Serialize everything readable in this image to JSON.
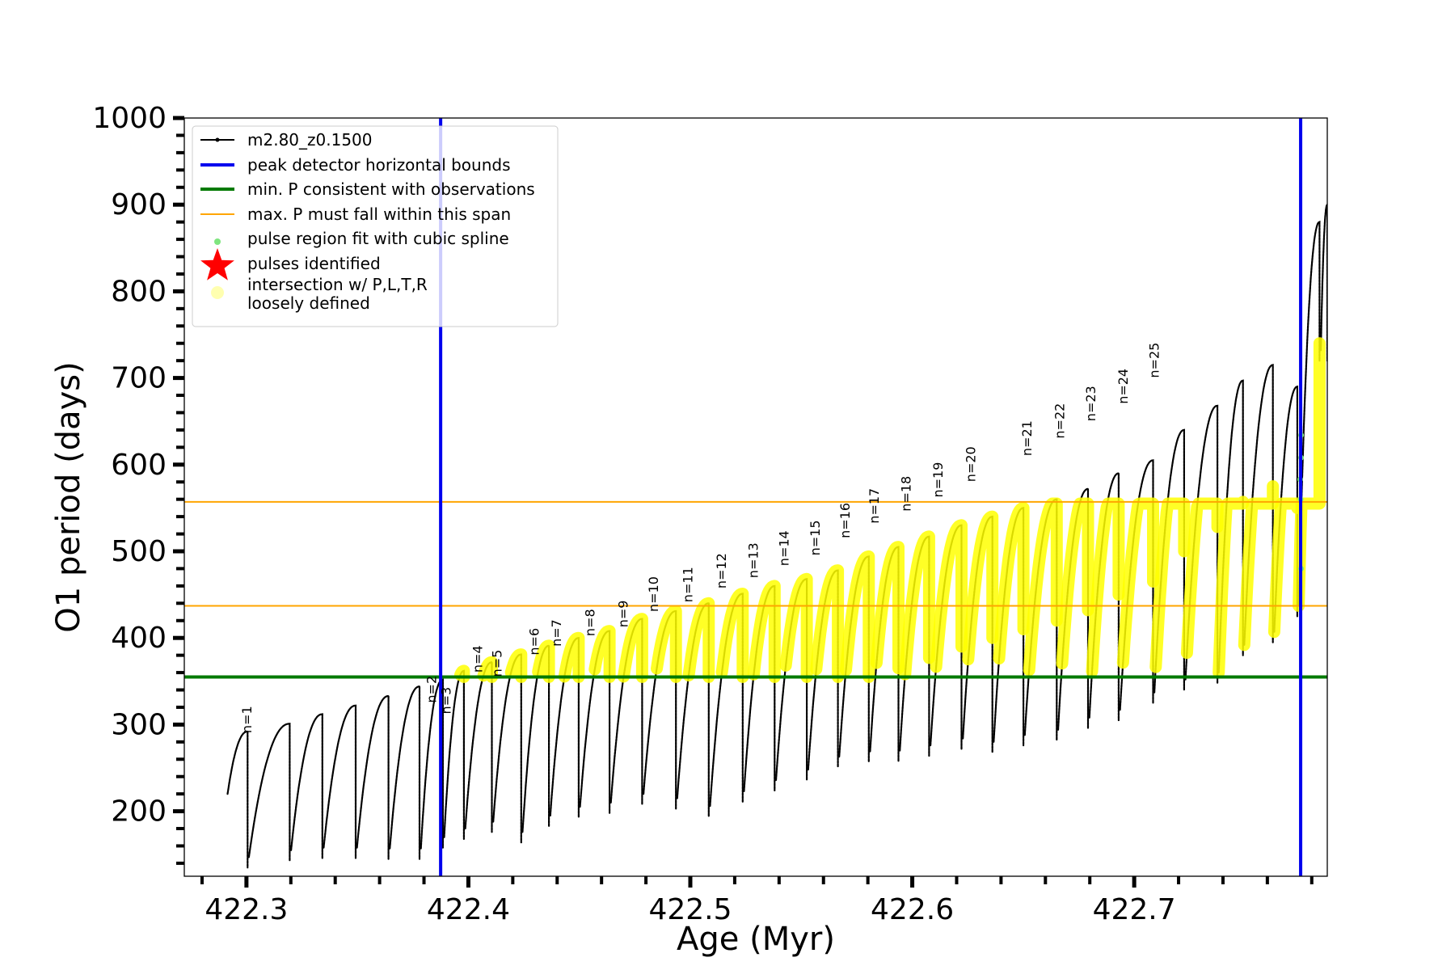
{
  "chart_data": {
    "type": "line",
    "xlabel": "Age (Myr)",
    "ylabel": "O1 period (days)",
    "xlim": [
      422.272,
      422.787
    ],
    "ylim": [
      125,
      1000
    ],
    "x_ticks": [
      "422.3",
      "422.4",
      "422.5",
      "422.6",
      "422.7"
    ],
    "y_ticks": [
      "200",
      "300",
      "400",
      "500",
      "600",
      "700",
      "800",
      "900",
      "1000"
    ],
    "grid": false,
    "legend_position": "top-left",
    "legend": [
      {
        "label": "m2.80_z0.1500",
        "marker": "line-dot",
        "color": "#000000"
      },
      {
        "label": "peak detector horizontal bounds",
        "marker": "line",
        "color": "#0000ee"
      },
      {
        "label": "min. P consistent with observations",
        "marker": "line",
        "color": "#007a00"
      },
      {
        "label": "max. P must fall within this span",
        "marker": "line",
        "color": "#ffa500"
      },
      {
        "label": "pulse region fit with cubic spline",
        "marker": "dot",
        "color": "#7fe57f"
      },
      {
        "label": "pulses identified",
        "marker": "star",
        "color": "#ff0000"
      },
      {
        "label": "intersection w/ P,L,T,R",
        "label2": "loosely defined",
        "marker": "circle",
        "color": "#ffffb0"
      }
    ],
    "series": [
      {
        "name": "m2.80_z0.1500",
        "color": "#000000",
        "start": [
          422.2915,
          220
        ],
        "cycles": [
          [
            422.3005,
            292,
            135
          ],
          [
            422.3195,
            301,
            143
          ],
          [
            422.3342,
            312,
            146
          ],
          [
            422.3492,
            322,
            146
          ],
          [
            422.364,
            333,
            145
          ],
          [
            422.378,
            344,
            145
          ],
          [
            422.3885,
            352,
            158
          ],
          [
            422.398,
            362,
            168
          ],
          [
            422.4106,
            372,
            176
          ],
          [
            422.4238,
            381,
            164
          ],
          [
            422.4363,
            391,
            183
          ],
          [
            422.4497,
            400,
            193
          ],
          [
            422.4636,
            408,
            198
          ],
          [
            422.4783,
            422,
            208
          ],
          [
            422.4935,
            431,
            203
          ],
          [
            422.5083,
            440,
            194
          ],
          [
            422.5236,
            451,
            211
          ],
          [
            422.538,
            460,
            224
          ],
          [
            422.5525,
            468,
            236
          ],
          [
            422.5665,
            478,
            251
          ],
          [
            422.5804,
            494,
            257
          ],
          [
            422.5938,
            505,
            258
          ],
          [
            422.6076,
            517,
            264
          ],
          [
            422.6222,
            530,
            272
          ],
          [
            422.6361,
            540,
            268
          ],
          [
            422.6501,
            550,
            276
          ],
          [
            422.6651,
            560,
            282
          ],
          [
            422.6792,
            572,
            296
          ],
          [
            422.693,
            590,
            305
          ],
          [
            422.7085,
            605,
            325
          ],
          [
            422.7225,
            640,
            340
          ],
          [
            422.7375,
            668,
            348
          ],
          [
            422.749,
            697,
            380
          ],
          [
            422.7625,
            715,
            395
          ],
          [
            422.7735,
            690,
            425
          ],
          [
            422.7835,
            880,
            720
          ],
          [
            422.787,
            900,
            720
          ]
        ]
      }
    ],
    "pulse_labels": [
      "n=1",
      "n=2",
      "n=3",
      "n=4",
      "n=5",
      "n=6",
      "n=7",
      "n=8",
      "n=9",
      "n=10",
      "n=11",
      "n=12",
      "n=13",
      "n=14",
      "n=15",
      "n=16",
      "n=17",
      "n=18",
      "n=19",
      "n=20",
      "n=21",
      "n=22",
      "n=23",
      "n=24",
      "n=25"
    ],
    "pulse_label_points": [
      [
        422.3022,
        290
      ],
      [
        422.3855,
        325
      ],
      [
        422.392,
        312
      ],
      [
        422.4063,
        360
      ],
      [
        422.415,
        355
      ],
      [
        422.4317,
        380
      ],
      [
        422.4418,
        390
      ],
      [
        422.4568,
        402
      ],
      [
        422.4718,
        412
      ],
      [
        422.4855,
        430
      ],
      [
        422.5009,
        441
      ],
      [
        422.5161,
        457
      ],
      [
        422.5305,
        469
      ],
      [
        422.5443,
        483
      ],
      [
        422.5582,
        495
      ],
      [
        422.5718,
        515
      ],
      [
        422.5848,
        532
      ],
      [
        422.5993,
        546
      ],
      [
        422.6137,
        562
      ],
      [
        422.6283,
        580
      ],
      [
        422.6537,
        610
      ],
      [
        422.6685,
        630
      ],
      [
        422.6825,
        650
      ],
      [
        422.697,
        670
      ],
      [
        422.711,
        700
      ]
    ],
    "hlines": [
      {
        "y": 355,
        "color": "#007a00",
        "width": 4
      },
      {
        "y": 437,
        "color": "#ffa500",
        "width": 2
      },
      {
        "y": 557,
        "color": "#ffa500",
        "width": 2
      }
    ],
    "vlines": [
      {
        "x": 422.3875,
        "color": "#0000ee",
        "width": 4
      },
      {
        "x": 422.775,
        "color": "#0000ee",
        "width": 4
      }
    ],
    "yellow_color": "#ffff00",
    "spline_color": "#7fe57f"
  }
}
